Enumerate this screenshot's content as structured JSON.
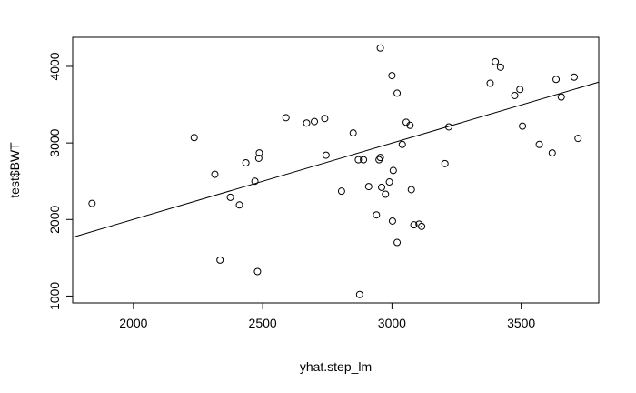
{
  "chart_data": {
    "type": "scatter",
    "title": "",
    "xlabel": "yhat.step_lm",
    "ylabel": "test$BWT",
    "xlim": [
      1765,
      3800
    ],
    "ylim": [
      910,
      4380
    ],
    "x_ticks": [
      2000,
      2500,
      3000,
      3500
    ],
    "y_ticks": [
      1000,
      2000,
      3000,
      4000
    ],
    "grid": false,
    "legend": "none",
    "fit_line": {
      "x": [
        1765,
        3800
      ],
      "y": [
        1767,
        3795
      ]
    },
    "points": [
      {
        "x": 1840,
        "y": 2210
      },
      {
        "x": 2235,
        "y": 3070
      },
      {
        "x": 2315,
        "y": 2590
      },
      {
        "x": 2335,
        "y": 1470
      },
      {
        "x": 2375,
        "y": 2290
      },
      {
        "x": 2410,
        "y": 2190
      },
      {
        "x": 2435,
        "y": 2740
      },
      {
        "x": 2470,
        "y": 2500
      },
      {
        "x": 2480,
        "y": 1320
      },
      {
        "x": 2485,
        "y": 2800
      },
      {
        "x": 2487,
        "y": 2870
      },
      {
        "x": 2590,
        "y": 3330
      },
      {
        "x": 2670,
        "y": 3260
      },
      {
        "x": 2700,
        "y": 3280
      },
      {
        "x": 2740,
        "y": 3320
      },
      {
        "x": 2745,
        "y": 2840
      },
      {
        "x": 2805,
        "y": 2370
      },
      {
        "x": 2850,
        "y": 3130
      },
      {
        "x": 2870,
        "y": 2780
      },
      {
        "x": 2875,
        "y": 1020
      },
      {
        "x": 2890,
        "y": 2780
      },
      {
        "x": 2910,
        "y": 2430
      },
      {
        "x": 2940,
        "y": 2060
      },
      {
        "x": 2950,
        "y": 2780
      },
      {
        "x": 2955,
        "y": 2810
      },
      {
        "x": 2955,
        "y": 4240
      },
      {
        "x": 2960,
        "y": 2420
      },
      {
        "x": 2975,
        "y": 2330
      },
      {
        "x": 2990,
        "y": 2490
      },
      {
        "x": 3000,
        "y": 3880
      },
      {
        "x": 3002,
        "y": 1980
      },
      {
        "x": 3005,
        "y": 2640
      },
      {
        "x": 3020,
        "y": 1700
      },
      {
        "x": 3020,
        "y": 3650
      },
      {
        "x": 3040,
        "y": 2980
      },
      {
        "x": 3055,
        "y": 3270
      },
      {
        "x": 3070,
        "y": 3230
      },
      {
        "x": 3075,
        "y": 2390
      },
      {
        "x": 3085,
        "y": 1930
      },
      {
        "x": 3105,
        "y": 1940
      },
      {
        "x": 3115,
        "y": 1910
      },
      {
        "x": 3205,
        "y": 2730
      },
      {
        "x": 3220,
        "y": 3210
      },
      {
        "x": 3380,
        "y": 3780
      },
      {
        "x": 3400,
        "y": 4060
      },
      {
        "x": 3420,
        "y": 3990
      },
      {
        "x": 3475,
        "y": 3620
      },
      {
        "x": 3495,
        "y": 3700
      },
      {
        "x": 3505,
        "y": 3220
      },
      {
        "x": 3570,
        "y": 2980
      },
      {
        "x": 3620,
        "y": 2870
      },
      {
        "x": 3635,
        "y": 3830
      },
      {
        "x": 3655,
        "y": 3600
      },
      {
        "x": 3705,
        "y": 3860
      },
      {
        "x": 3720,
        "y": 3060
      }
    ]
  }
}
